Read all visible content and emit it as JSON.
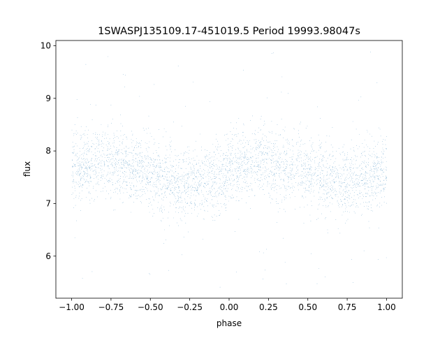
{
  "chart_data": {
    "type": "scatter",
    "title": "1SWASPJ135109.17-451019.5 Period 19993.98047s",
    "xlabel": "phase",
    "ylabel": "flux",
    "xlim": [
      -1.1,
      1.1
    ],
    "ylim": [
      5.2,
      10.1
    ],
    "x_ticks": [
      -1.0,
      -0.75,
      -0.5,
      -0.25,
      0.0,
      0.25,
      0.5,
      0.75,
      1.0
    ],
    "x_tick_labels": [
      "−1.00",
      "−0.75",
      "−0.50",
      "−0.25",
      "0.00",
      "0.25",
      "0.50",
      "0.75",
      "1.00"
    ],
    "y_ticks": [
      6,
      7,
      8,
      9,
      10
    ],
    "y_tick_labels": [
      "6",
      "7",
      "8",
      "9",
      "10"
    ],
    "grid": false,
    "legend": "none",
    "marker_color": "#1f77b4",
    "series": [
      {
        "phase_range": [
          -1.0,
          1.0
        ],
        "point_count": 24000,
        "mean_flux": 7.6,
        "semi_amplitude": 0.22,
        "maxima_phase": [
          -0.8,
          0.2
        ],
        "minima_phase": [
          -0.3,
          0.7
        ],
        "scatter_sd": 0.33,
        "outlier_flux_range": [
          5.4,
          9.9
        ],
        "x": [
          -1.0,
          -0.9,
          -0.8,
          -0.7,
          -0.6,
          -0.5,
          -0.4,
          -0.3,
          -0.2,
          -0.1,
          0.0,
          0.1,
          0.2,
          0.3,
          0.4,
          0.5,
          0.6,
          0.7,
          0.8,
          0.9,
          1.0
        ],
        "y": [
          7.67,
          7.74,
          7.82,
          7.75,
          7.71,
          7.56,
          7.47,
          7.38,
          7.42,
          7.48,
          7.58,
          7.72,
          7.82,
          7.76,
          7.7,
          7.56,
          7.44,
          7.4,
          7.44,
          7.48,
          7.6
        ]
      }
    ]
  }
}
